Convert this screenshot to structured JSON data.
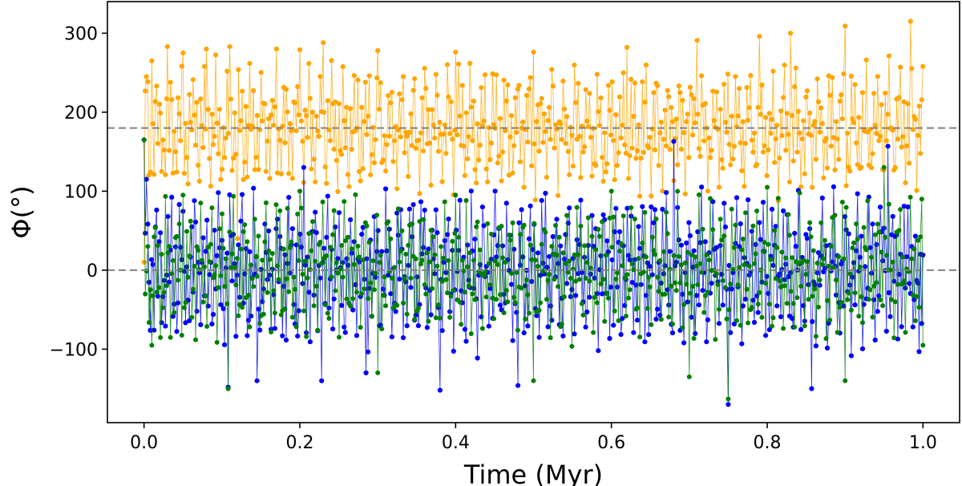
{
  "chart_data": {
    "type": "scatter",
    "xlabel": "Time (Myr)",
    "ylabel": "Φ(°)",
    "xlim": [
      -0.047,
      1.047
    ],
    "ylim": [
      -193,
      340
    ],
    "x_ticks": [
      0.0,
      0.2,
      0.4,
      0.6,
      0.8,
      1.0
    ],
    "x_tick_labels": [
      "0.0",
      "0.2",
      "0.4",
      "0.6",
      "0.8",
      "1.0"
    ],
    "y_ticks": [
      -100,
      0,
      100,
      200,
      300
    ],
    "y_tick_labels": [
      "−100",
      "0",
      "100",
      "200",
      "300"
    ],
    "reference_lines": [
      0,
      180
    ],
    "grid": false,
    "colors": {
      "orange": "#ffa500",
      "blue": "#0000ff",
      "green": "#008000",
      "reference_line": "#808080"
    },
    "series": [
      {
        "color": "orange",
        "style": "line+markers",
        "center": 178,
        "amplitude": 75,
        "x_start": 0.0,
        "x_end": 1.0,
        "points": [
          [
            0.0,
            10
          ],
          [
            0.003,
            245
          ],
          [
            0.006,
            120
          ],
          [
            0.01,
            265
          ],
          [
            0.02,
            210
          ],
          [
            0.03,
            283
          ],
          [
            0.05,
            275
          ],
          [
            0.08,
            280
          ],
          [
            0.11,
            283
          ],
          [
            0.12,
            40
          ],
          [
            0.17,
            280
          ],
          [
            0.2,
            279
          ],
          [
            0.23,
            288
          ],
          [
            0.3,
            278
          ],
          [
            0.4,
            276
          ],
          [
            0.5,
            276
          ],
          [
            0.62,
            282
          ],
          [
            0.71,
            291
          ],
          [
            0.79,
            296
          ],
          [
            0.83,
            300
          ],
          [
            0.9,
            309
          ],
          [
            0.984,
            315
          ],
          [
            1.0,
            258
          ]
        ]
      },
      {
        "color": "blue",
        "style": "line+markers",
        "center": 0,
        "amplitude": 90,
        "x_start": 0.0,
        "x_end": 1.0,
        "points": [
          [
            0.0,
            165
          ],
          [
            0.003,
            115
          ],
          [
            0.108,
            -148
          ],
          [
            0.145,
            -140
          ],
          [
            0.205,
            130
          ],
          [
            0.228,
            -140
          ],
          [
            0.285,
            -130
          ],
          [
            0.38,
            -152
          ],
          [
            0.48,
            -146
          ],
          [
            0.68,
            163
          ],
          [
            0.75,
            -170
          ],
          [
            0.857,
            -150
          ],
          [
            0.955,
            157
          ],
          [
            0.995,
            -103
          ]
        ]
      },
      {
        "color": "green",
        "style": "line+markers",
        "center": 0,
        "amplitude": 80,
        "x_start": 0.0,
        "x_end": 1.0,
        "points": [
          [
            0.0,
            165
          ],
          [
            0.01,
            -95
          ],
          [
            0.05,
            95
          ],
          [
            0.108,
            -150
          ],
          [
            0.2,
            100
          ],
          [
            0.3,
            -130
          ],
          [
            0.4,
            95
          ],
          [
            0.5,
            -140
          ],
          [
            0.6,
            100
          ],
          [
            0.7,
            -135
          ],
          [
            0.75,
            -163
          ],
          [
            0.8,
            105
          ],
          [
            0.9,
            -140
          ],
          [
            0.95,
            130
          ],
          [
            1.0,
            -95
          ]
        ]
      }
    ]
  }
}
